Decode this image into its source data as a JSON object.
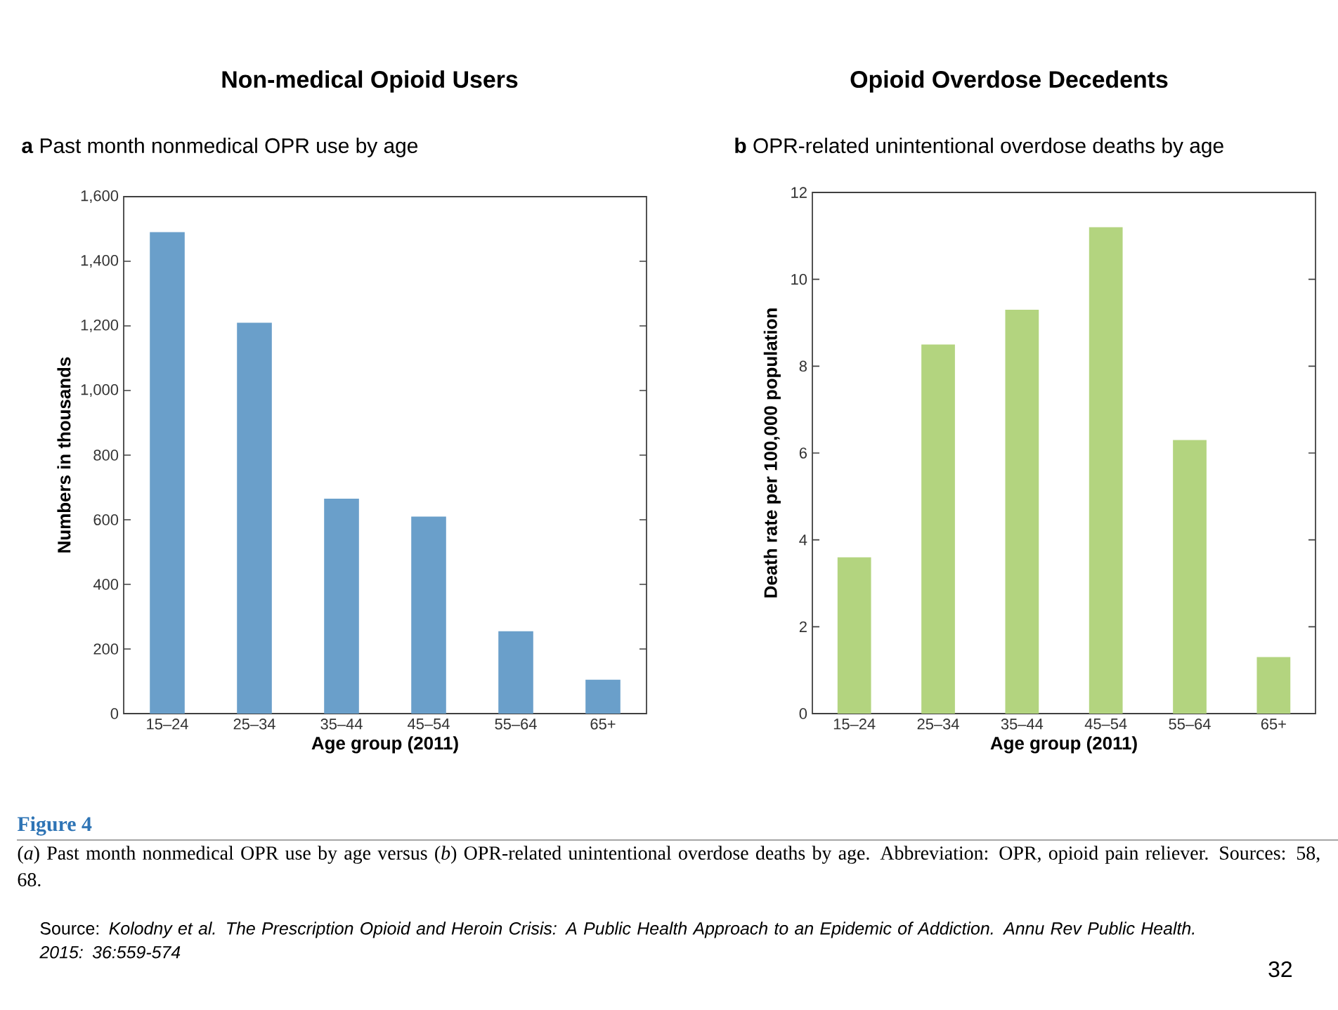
{
  "chart_data": [
    {
      "type": "bar",
      "title": "Non-medical Opioid Users",
      "subtitle": "**a** Past month nonmedical OPR use by age",
      "xlabel": "Age group (2011)",
      "ylabel": "Numbers in thousands",
      "categories": [
        "15–24",
        "25–34",
        "35–44",
        "45–54",
        "55–64",
        "65+"
      ],
      "values": [
        1490,
        1210,
        665,
        610,
        255,
        105
      ],
      "color": "#6a9fca",
      "ylim": [
        0,
        1600
      ],
      "yticks": [
        0,
        200,
        400,
        600,
        800,
        {
          "value": 1000,
          "label": "1,000"
        },
        {
          "value": 1200,
          "label": "1,200"
        },
        {
          "value": 1400,
          "label": "1,400"
        },
        {
          "value": 1600,
          "label": "1,600"
        }
      ],
      "annotations": [
        "Figure 4",
        "(*a*) Past month nonmedical OPR use by age versus (*b*) OPR-related unintentional overdose deaths by age. Abbreviation: OPR, opioid pain reliever. Sources: 58, 68.",
        "Source: *Kolodny et al. The Prescription Opioid and Heroin Crisis: A Public Health Approach to an Epidemic of Addiction. Annu Rev Public Health. 2015: 36:559-574*",
        "32"
      ]
    },
    {
      "type": "bar",
      "title": "Opioid Overdose Decedents",
      "subtitle": "**b** OPR-related unintentional overdose deaths by age",
      "xlabel": "Age group (2011)",
      "ylabel": "Death rate per 100,000 population",
      "categories": [
        "15–24",
        "25–34",
        "35–44",
        "45–54",
        "55–64",
        "65+"
      ],
      "values": [
        3.6,
        8.5,
        9.3,
        11.2,
        6.3,
        1.3
      ],
      "color": "#b3d47f",
      "ylim": [
        0,
        12
      ],
      "yticks": [
        0,
        2,
        4,
        6,
        8,
        10,
        12
      ]
    }
  ]
}
